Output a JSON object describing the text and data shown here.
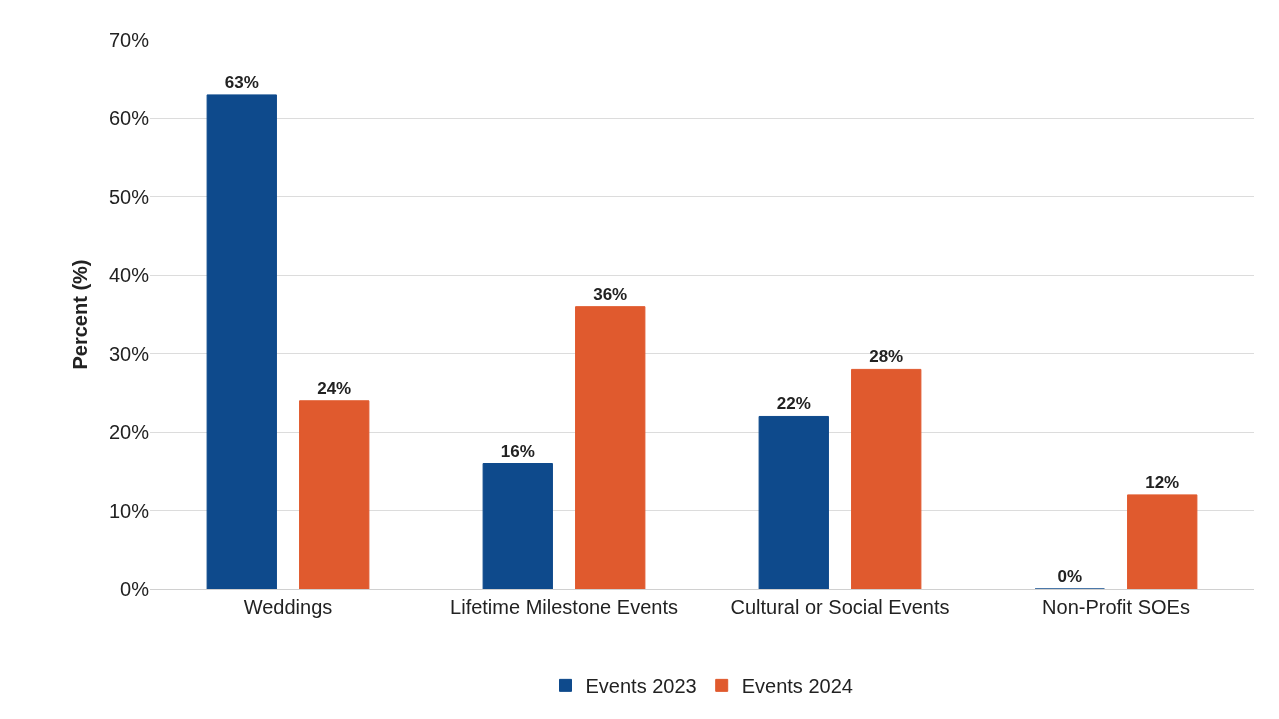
{
  "chart_data": {
    "type": "bar",
    "ylabel": "Percent (%)",
    "categories": [
      "Weddings",
      "Lifetime Milestone Events",
      "Cultural or Social Events",
      "Non-Profit SOEs"
    ],
    "series": [
      {
        "name": "Events 2023",
        "color": "#0e4a8c",
        "values": [
          63,
          16,
          22,
          0
        ],
        "value_labels": [
          "63%",
          "16%",
          "22%",
          "0%"
        ]
      },
      {
        "name": "Events 2024",
        "color": "#e05a2e",
        "values": [
          24,
          36,
          28,
          12
        ],
        "value_labels": [
          "24%",
          "36%",
          "28%",
          "12%"
        ]
      }
    ],
    "ylim": [
      0,
      70
    ],
    "yticks": [
      {
        "value": 0,
        "label": "0%"
      },
      {
        "value": 10,
        "label": "10%"
      },
      {
        "value": 20,
        "label": "20%"
      },
      {
        "value": 30,
        "label": "30%"
      },
      {
        "value": 40,
        "label": "40%"
      },
      {
        "value": 50,
        "label": "50%"
      },
      {
        "value": 60,
        "label": "60%"
      },
      {
        "value": 70,
        "label": "70%"
      }
    ],
    "grid": "y",
    "legend": "bottom"
  }
}
